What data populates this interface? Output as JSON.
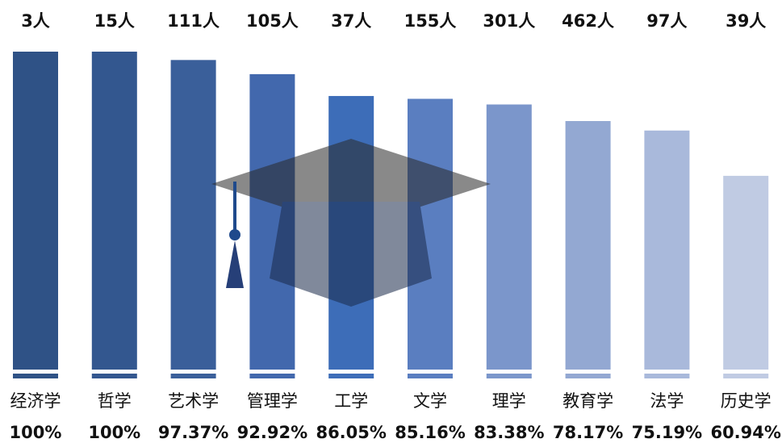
{
  "chart_data": {
    "type": "bar",
    "categories": [
      "经济学",
      "哲学",
      "艺术学",
      "管理学",
      "工学",
      "文学",
      "理学",
      "教育学",
      "法学",
      "历史学"
    ],
    "values": [
      100,
      100,
      97.37,
      92.92,
      86.05,
      85.16,
      83.38,
      78.17,
      75.19,
      60.94
    ],
    "value_labels": [
      "100%",
      "100%",
      "97.37%",
      "92.92%",
      "86.05%",
      "85.16%",
      "83.38%",
      "78.17%",
      "75.19%",
      "60.94%"
    ],
    "count_labels": [
      "3人",
      "15人",
      "111人",
      "105人",
      "37人",
      "155人",
      "301人",
      "462人",
      "97人",
      "39人"
    ],
    "colors": [
      "#2f5286",
      "#33578f",
      "#3a5f9a",
      "#4268ad",
      "#3d6db8",
      "#5a7ec0",
      "#7b96cb",
      "#93a8d2",
      "#a9b9db",
      "#c0cbe3"
    ],
    "ylim": [
      0,
      100
    ]
  }
}
